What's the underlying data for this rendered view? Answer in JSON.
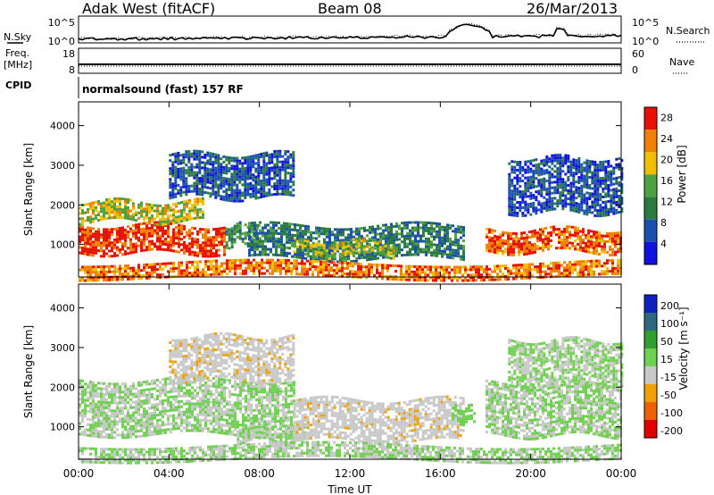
{
  "header": {
    "station": "Adak West (fitACF)",
    "beam": "Beam 08",
    "date": "26/Mar/2013"
  },
  "top_panels": {
    "nsky_label": "N.Sky",
    "nsky_ticks": [
      "10^5",
      "10^0"
    ],
    "nsearch_label": "N.Search",
    "nsearch_ticks": [
      "10^5",
      "10^0"
    ],
    "freq_label": "Freq.",
    "freq_unit": "[MHz]",
    "freq_ticks": [
      "18",
      "8"
    ],
    "nave_label": "Nave",
    "nave_ticks": [
      "60",
      "0"
    ],
    "cpid_label": "CPID",
    "cpid_text": "normalsound (fast) 157 RF"
  },
  "x_axis": {
    "label": "Time UT",
    "ticks": [
      "00:00",
      "04:00",
      "08:00",
      "12:00",
      "16:00",
      "20:00",
      "00:00"
    ]
  },
  "chart_data": [
    {
      "type": "heatmap",
      "ylabel": "Slant Range [km]",
      "xlabel": "Time UT",
      "y_ticks": [
        "1000",
        "2000",
        "3000",
        "4000"
      ],
      "ylim": [
        180,
        4600
      ],
      "xlim": [
        0,
        24
      ],
      "colorbar": {
        "label": "Power [dB]",
        "tick_labels": [
          "4",
          "8",
          "12",
          "16",
          "20",
          "24",
          "28"
        ],
        "range": [
          0,
          30
        ],
        "colors": [
          "#1010e0",
          "#1a4fb0",
          "#2b7a40",
          "#4fa040",
          "#f0c000",
          "#f08000",
          "#e81000"
        ]
      },
      "regions": [
        {
          "t0": 0.0,
          "t1": 6.5,
          "r0": 800,
          "r1": 1500,
          "level": 27
        },
        {
          "t0": 6.5,
          "t1": 8.0,
          "r0": 1000,
          "r1": 1500,
          "level": 12
        },
        {
          "t0": 0.0,
          "t1": 5.5,
          "r0": 1600,
          "r1": 2100,
          "level": 18
        },
        {
          "t0": 4.0,
          "t1": 9.5,
          "r0": 2200,
          "r1": 3300,
          "level": 7
        },
        {
          "t0": 7.5,
          "t1": 17.0,
          "r0": 650,
          "r1": 1500,
          "level": 10
        },
        {
          "t0": 9.5,
          "t1": 14.0,
          "r0": 700,
          "r1": 1100,
          "level": 17
        },
        {
          "t0": 18.0,
          "t1": 24.0,
          "r0": 800,
          "r1": 1400,
          "level": 25
        },
        {
          "t0": 19.0,
          "t1": 24.0,
          "r0": 1800,
          "r1": 3200,
          "level": 6
        },
        {
          "t0": 0.0,
          "t1": 24.0,
          "r0": 190,
          "r1": 550,
          "level": 24
        }
      ]
    },
    {
      "type": "heatmap",
      "ylabel": "Slant Range [km]",
      "xlabel": "Time UT",
      "y_ticks": [
        "1000",
        "2000",
        "3000",
        "4000"
      ],
      "ylim": [
        180,
        4600
      ],
      "xlim": [
        0,
        24
      ],
      "colorbar": {
        "label": "Velocity [m s⁻¹]",
        "tick_labels": [
          "200",
          "100",
          "50",
          "15",
          "-15",
          "-50",
          "-100",
          "-200"
        ],
        "range": [
          -250,
          250
        ],
        "colors": [
          "#1020c0",
          "#2d6a80",
          "#30a030",
          "#70d050",
          "#c8c8c8",
          "#f0a000",
          "#f06000",
          "#e00000"
        ]
      },
      "regions": [
        {
          "t0": 0.0,
          "t1": 9.5,
          "r0": 800,
          "r1": 2200,
          "level": 0
        },
        {
          "t0": 4.0,
          "t1": 9.5,
          "r0": 2200,
          "r1": 3300,
          "level": -40
        },
        {
          "t0": 7.0,
          "t1": 10.0,
          "r0": 600,
          "r1": 1000,
          "level": 0
        },
        {
          "t0": 9.5,
          "t1": 17.0,
          "r0": 650,
          "r1": 1700,
          "level": -40
        },
        {
          "t0": 16.5,
          "t1": 17.5,
          "r0": 1100,
          "r1": 1500,
          "level": 30
        },
        {
          "t0": 18.0,
          "t1": 24.0,
          "r0": 800,
          "r1": 2100,
          "level": 0
        },
        {
          "t0": 19.0,
          "t1": 24.0,
          "r0": 2100,
          "r1": 3200,
          "level": 0
        },
        {
          "t0": 0.0,
          "t1": 24.0,
          "r0": 190,
          "r1": 550,
          "level": 0
        }
      ]
    }
  ]
}
